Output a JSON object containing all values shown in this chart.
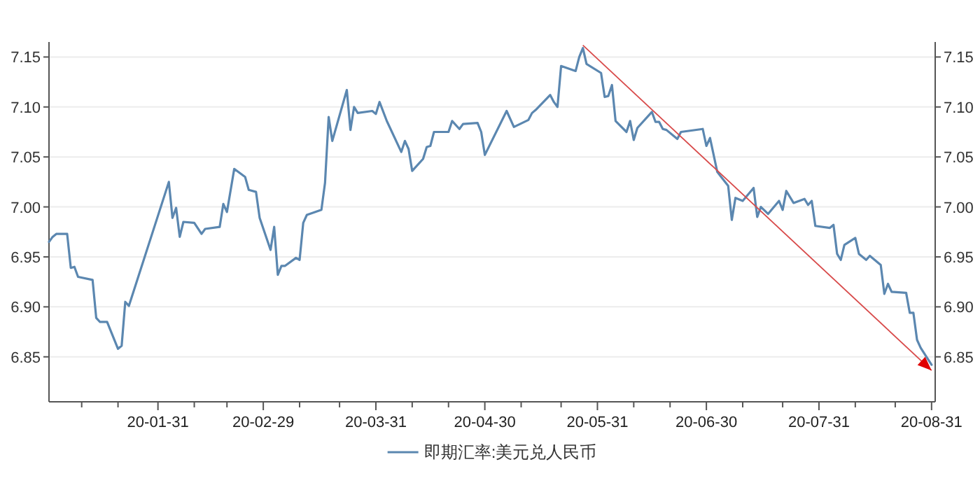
{
  "chart_data": {
    "type": "line",
    "x": [
      "--01-01",
      "--01-02",
      "--01-03",
      "--01-06",
      "--01-07",
      "--01-08",
      "--01-09",
      "--01-13",
      "--01-14",
      "--01-15",
      "--01-17",
      "--01-20",
      "--01-21",
      "--01-22",
      "--01-23",
      "--02-03",
      "--02-04",
      "--02-05",
      "--02-06",
      "--02-07",
      "--02-10",
      "--02-12",
      "--02-13",
      "--02-17",
      "--02-18",
      "--02-19",
      "--02-21",
      "--02-24",
      "--02-25",
      "--02-27",
      "--02-28",
      "--03-02",
      "--03-03",
      "--03-04",
      "--03-05",
      "--03-06",
      "--03-09",
      "--03-10",
      "--03-11",
      "--03-12",
      "--03-16",
      "--03-17",
      "--03-18",
      "--03-19",
      "--03-23",
      "--03-24",
      "--03-25",
      "--03-26",
      "--03-30",
      "--03-31",
      "--04-01",
      "--04-03",
      "--04-07",
      "--04-08",
      "--04-09",
      "--04-10",
      "--04-13",
      "--04-14",
      "--04-15",
      "--04-16",
      "--04-20",
      "--04-21",
      "--04-23",
      "--04-24",
      "--04-28",
      "--04-29",
      "--04-30",
      "--05-06",
      "--05-08",
      "--05-12",
      "--05-13",
      "--05-14",
      "--05-18",
      "--05-19",
      "--05-20",
      "--05-21",
      "--05-25",
      "--05-26",
      "--05-27",
      "--05-28",
      "--06-01",
      "--06-02",
      "--06-03",
      "--06-04",
      "--06-05",
      "--06-08",
      "--06-09",
      "--06-10",
      "--06-11",
      "--06-15",
      "--06-16",
      "--06-17",
      "--06-18",
      "--06-19",
      "--06-22",
      "--06-23",
      "--06-29",
      "--06-30",
      "--07-01",
      "--07-03",
      "--07-06",
      "--07-07",
      "--07-08",
      "--07-10",
      "--07-13",
      "--07-14",
      "--07-15",
      "--07-17",
      "--07-20",
      "--07-21",
      "--07-22",
      "--07-24",
      "--07-27",
      "--07-28",
      "--07-29",
      "--07-30",
      "--08-03",
      "--08-04",
      "--08-05",
      "--08-06",
      "--08-07",
      "--08-10",
      "--08-11",
      "--08-13",
      "--08-14",
      "--08-17",
      "--08-18",
      "--08-19",
      "--08-20",
      "--08-24",
      "--08-25",
      "--08-26",
      "--08-27",
      "--08-28",
      "--08-31"
    ],
    "series": [
      {
        "name": "即期汇率:美元兑人民币",
        "color": "#5b87b0",
        "values": [
          6.965,
          6.97,
          6.973,
          6.973,
          6.939,
          6.94,
          6.93,
          6.927,
          6.889,
          6.885,
          6.885,
          6.858,
          6.861,
          6.905,
          6.901,
          7.025,
          6.989,
          6.999,
          6.97,
          6.985,
          6.984,
          6.973,
          6.978,
          6.98,
          7.003,
          6.995,
          7.038,
          7.03,
          7.017,
          7.015,
          6.989,
          6.957,
          6.98,
          6.932,
          6.941,
          6.941,
          6.949,
          6.947,
          6.984,
          6.992,
          6.997,
          7.024,
          7.09,
          7.066,
          7.117,
          7.077,
          7.1,
          7.094,
          7.096,
          7.093,
          7.105,
          7.086,
          7.055,
          7.066,
          7.058,
          7.036,
          7.048,
          7.06,
          7.061,
          7.075,
          7.075,
          7.086,
          7.078,
          7.083,
          7.084,
          7.075,
          7.052,
          7.096,
          7.08,
          7.087,
          7.094,
          7.097,
          7.112,
          7.105,
          7.1,
          7.141,
          7.136,
          7.15,
          7.159,
          7.143,
          7.134,
          7.11,
          7.111,
          7.122,
          7.086,
          7.075,
          7.086,
          7.067,
          7.079,
          7.095,
          7.085,
          7.085,
          7.078,
          7.077,
          7.068,
          7.075,
          7.078,
          7.061,
          7.069,
          7.035,
          7.021,
          6.987,
          7.009,
          7.006,
          7.019,
          6.99,
          7.0,
          6.993,
          7.006,
          6.997,
          7.016,
          7.004,
          7.008,
          7.002,
          7.006,
          6.981,
          6.979,
          6.982,
          6.953,
          6.947,
          6.962,
          6.969,
          6.953,
          6.947,
          6.951,
          6.942,
          6.913,
          6.923,
          6.915,
          6.914,
          6.894,
          6.894,
          6.867,
          6.859,
          6.842
        ]
      }
    ],
    "xlim": [
      "--01-01",
      "--09-01"
    ],
    "xticks": [
      {
        "value": "--01-10",
        "label": null
      },
      {
        "value": "--01-20",
        "label": null
      },
      {
        "value": "--01-31",
        "label": "20-01-31"
      },
      {
        "value": "--02-10",
        "label": null
      },
      {
        "value": "--02-19",
        "label": null
      },
      {
        "value": "--02-29",
        "label": "20-02-29"
      },
      {
        "value": "--03-10",
        "label": null
      },
      {
        "value": "--03-21",
        "label": null
      },
      {
        "value": "--03-31",
        "label": "20-03-31"
      },
      {
        "value": "--04-10",
        "label": null
      },
      {
        "value": "--04-20",
        "label": null
      },
      {
        "value": "--04-30",
        "label": "20-04-30"
      },
      {
        "value": "--05-10",
        "label": null
      },
      {
        "value": "--05-21",
        "label": null
      },
      {
        "value": "--05-31",
        "label": "20-05-31"
      },
      {
        "value": "--06-10",
        "label": null
      },
      {
        "value": "--06-20",
        "label": null
      },
      {
        "value": "--06-30",
        "label": "20-06-30"
      },
      {
        "value": "--07-10",
        "label": null
      },
      {
        "value": "--07-21",
        "label": null
      },
      {
        "value": "--07-31",
        "label": "20-07-31"
      },
      {
        "value": "--08-10",
        "label": null
      },
      {
        "value": "--08-21",
        "label": null
      },
      {
        "value": "--08-31",
        "label": "20-08-31"
      }
    ],
    "ylim": [
      6.805,
      7.165
    ],
    "yticks": [
      {
        "value": 6.85,
        "label": "6.85"
      },
      {
        "value": 6.9,
        "label": "6.90"
      },
      {
        "value": 6.95,
        "label": "6.95"
      },
      {
        "value": 7,
        "label": "7.00"
      },
      {
        "value": 7.05,
        "label": "7.05"
      },
      {
        "value": 7.1,
        "label": "7.10"
      },
      {
        "value": 7.15,
        "label": "7.15"
      }
    ],
    "y2lim": [
      6.805,
      7.165
    ],
    "y2ticks": [
      {
        "value": 6.85,
        "label": "6.85"
      },
      {
        "value": 6.9,
        "label": "6.90"
      },
      {
        "value": 6.95,
        "label": "6.95"
      },
      {
        "value": 7,
        "label": "7.00"
      },
      {
        "value": 7.05,
        "label": "7.05"
      },
      {
        "value": 7.1,
        "label": "7.10"
      },
      {
        "value": 7.15,
        "label": "7.15"
      }
    ],
    "grid": "y",
    "legend": "bottom",
    "marker": "none",
    "line_style": "solid"
  }
}
